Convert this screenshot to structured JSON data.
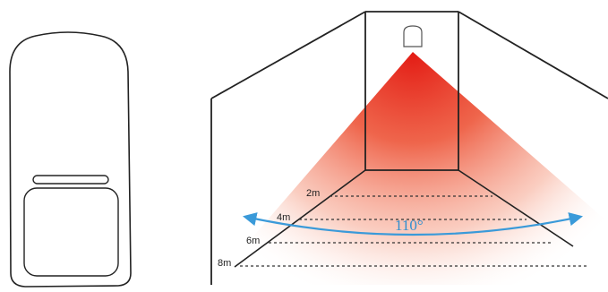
{
  "diagram": {
    "coverage_angle": "110°",
    "distance_labels": [
      "2m",
      "4m",
      "6m",
      "8m"
    ],
    "colors": {
      "beam": "#e8231c",
      "arc": "#3a9ad9",
      "outline": "#222222",
      "angle_text": "#2f8fd0"
    }
  }
}
